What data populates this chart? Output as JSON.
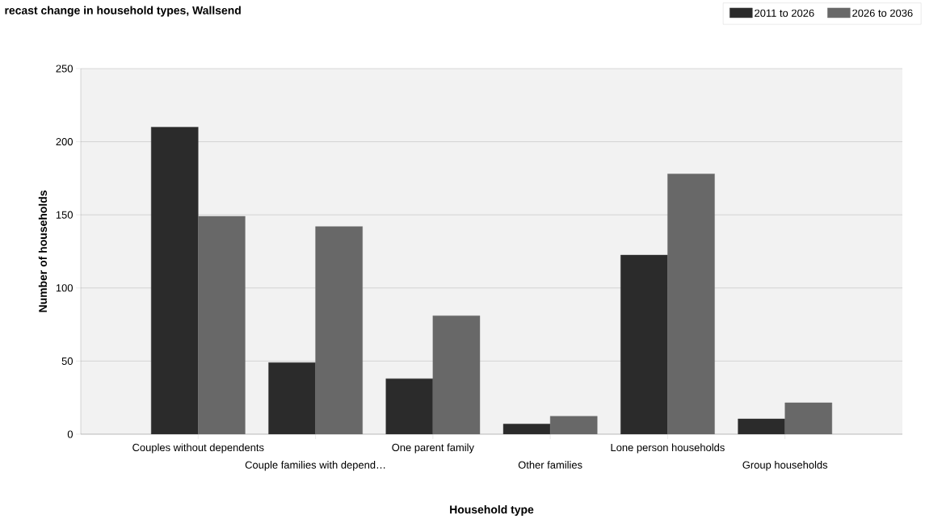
{
  "chart_data": {
    "type": "bar",
    "title": "recast change in household types, Wallsend",
    "xlabel": "Household type",
    "ylabel": "Number of households",
    "categories": [
      "Couples without dependents",
      "Couple families with depend…",
      "One parent family",
      "Other families",
      "Lone person households",
      "Group households"
    ],
    "series": [
      {
        "name": "2011 to 2026",
        "color": "#2b2b2b",
        "values": [
          210,
          49,
          38,
          7,
          122.5,
          10.5
        ]
      },
      {
        "name": "2026 to 2036",
        "color": "#686868",
        "values": [
          149,
          142,
          81,
          12.3,
          178,
          21.5
        ]
      }
    ],
    "ylim": [
      0,
      250
    ],
    "yticks": [
      0,
      50,
      100,
      150,
      200,
      250
    ],
    "grid": "y",
    "legend": "top right"
  }
}
